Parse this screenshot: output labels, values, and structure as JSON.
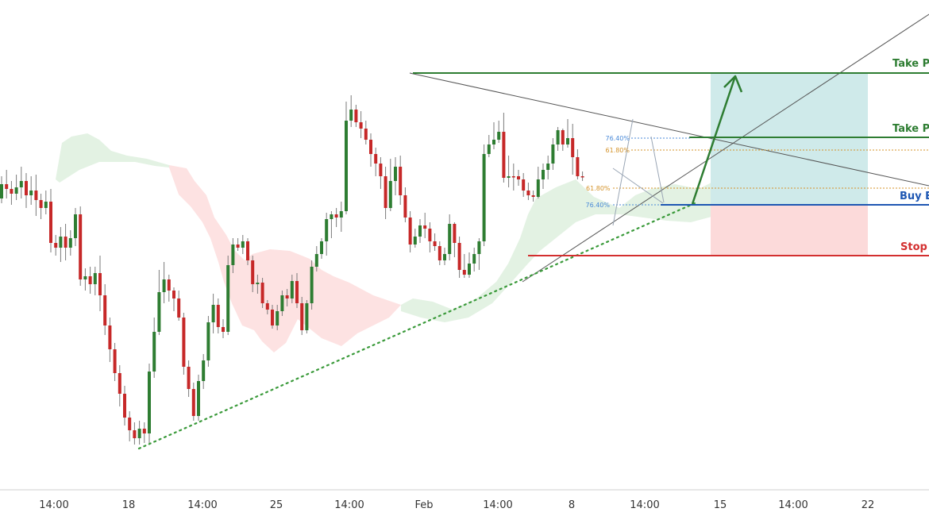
{
  "chart_data": {
    "type": "candlestick",
    "x_ticks": [
      "14:00",
      "18",
      "14:00",
      "25",
      "14:00",
      "Feb",
      "14:00",
      "8",
      "14:00",
      "15",
      "14:00",
      "22"
    ],
    "level_labels": {
      "take_profit_2": "Take P",
      "take_profit_1": "Take P",
      "buy_entry": "Buy E",
      "stop": "Stop"
    },
    "fib_labels": [
      "76.40%",
      "61.80%",
      "61.80%",
      "76.40%"
    ],
    "colors": {
      "bull": "#2e7d32",
      "bear": "#c62828",
      "take_profit": "#2e7d32",
      "buy_entry": "#1e57b3",
      "stop": "#d32f2f",
      "fib_blue": "#4a8ad8",
      "fib_orange": "#d4932a",
      "cloud_bull": "#e3f2e3",
      "cloud_bear": "#fde2e2",
      "profit_zone": "#cfeaea",
      "loss_zone": "#fcdada"
    },
    "candles": [
      [
        250,
        232,
        222,
        256
      ],
      [
        232,
        238,
        214,
        250
      ],
      [
        238,
        244,
        228,
        258
      ],
      [
        244,
        236,
        220,
        252
      ],
      [
        236,
        228,
        210,
        250
      ],
      [
        228,
        246,
        218,
        262
      ],
      [
        246,
        240,
        222,
        258
      ],
      [
        240,
        252,
        220,
        272
      ],
      [
        252,
        262,
        244,
        276
      ],
      [
        262,
        254,
        240,
        270
      ],
      [
        254,
        306,
        238,
        318
      ],
      [
        306,
        312,
        296,
        322
      ],
      [
        312,
        298,
        286,
        330
      ],
      [
        298,
        312,
        282,
        328
      ],
      [
        312,
        300,
        290,
        322
      ],
      [
        300,
        270,
        262,
        310
      ],
      [
        270,
        352,
        260,
        360
      ],
      [
        352,
        348,
        338,
        366
      ],
      [
        348,
        358,
        336,
        370
      ],
      [
        358,
        344,
        336,
        372
      ],
      [
        344,
        372,
        322,
        392
      ],
      [
        372,
        410,
        358,
        422
      ],
      [
        410,
        440,
        400,
        456
      ],
      [
        440,
        470,
        432,
        480
      ],
      [
        470,
        496,
        460,
        512
      ],
      [
        496,
        526,
        486,
        536
      ],
      [
        526,
        542,
        518,
        556
      ],
      [
        542,
        552,
        532,
        560
      ],
      [
        552,
        540,
        530,
        560
      ],
      [
        540,
        546,
        532,
        558
      ],
      [
        546,
        468,
        458,
        558
      ],
      [
        468,
        418,
        400,
        476
      ],
      [
        418,
        368,
        340,
        422
      ],
      [
        368,
        352,
        330,
        382
      ],
      [
        352,
        366,
        346,
        380
      ],
      [
        366,
        376,
        362,
        392
      ],
      [
        376,
        400,
        366,
        404
      ],
      [
        400,
        462,
        394,
        472
      ],
      [
        462,
        490,
        454,
        500
      ],
      [
        490,
        524,
        482,
        530
      ],
      [
        524,
        480,
        472,
        530
      ],
      [
        480,
        454,
        446,
        490
      ],
      [
        454,
        406,
        398,
        462
      ],
      [
        406,
        384,
        370,
        420
      ],
      [
        384,
        412,
        376,
        420
      ],
      [
        412,
        418,
        402,
        426
      ],
      [
        418,
        334,
        322,
        422
      ],
      [
        334,
        308,
        300,
        344
      ],
      [
        308,
        312,
        300,
        316
      ],
      [
        312,
        304,
        296,
        320
      ],
      [
        304,
        328,
        300,
        334
      ],
      [
        328,
        358,
        322,
        368
      ],
      [
        358,
        356,
        346,
        370
      ],
      [
        356,
        382,
        350,
        388
      ],
      [
        382,
        390,
        378,
        396
      ],
      [
        390,
        410,
        384,
        414
      ],
      [
        410,
        392,
        384,
        416
      ],
      [
        392,
        372,
        366,
        398
      ],
      [
        372,
        376,
        364,
        386
      ],
      [
        376,
        354,
        346,
        382
      ],
      [
        354,
        382,
        344,
        388
      ],
      [
        382,
        416,
        374,
        422
      ],
      [
        416,
        382,
        378,
        420
      ],
      [
        382,
        336,
        328,
        390
      ],
      [
        336,
        320,
        310,
        342
      ],
      [
        320,
        304,
        300,
        326
      ],
      [
        304,
        276,
        268,
        322
      ],
      [
        276,
        270,
        266,
        300
      ],
      [
        270,
        274,
        262,
        286
      ],
      [
        274,
        266,
        254,
        292
      ],
      [
        266,
        152,
        128,
        270
      ],
      [
        152,
        138,
        120,
        160
      ],
      [
        138,
        154,
        132,
        160
      ],
      [
        154,
        162,
        140,
        174
      ],
      [
        162,
        176,
        152,
        182
      ],
      [
        176,
        194,
        168,
        210
      ],
      [
        194,
        206,
        186,
        222
      ],
      [
        206,
        222,
        198,
        238
      ],
      [
        222,
        262,
        210,
        276
      ],
      [
        262,
        228,
        200,
        266
      ],
      [
        228,
        210,
        198,
        246
      ],
      [
        210,
        246,
        196,
        258
      ],
      [
        246,
        274,
        236,
        280
      ],
      [
        274,
        308,
        266,
        318
      ],
      [
        308,
        298,
        288,
        312
      ],
      [
        298,
        284,
        276,
        306
      ],
      [
        284,
        288,
        268,
        300
      ],
      [
        288,
        304,
        280,
        318
      ],
      [
        304,
        310,
        294,
        316
      ],
      [
        310,
        328,
        304,
        334
      ],
      [
        328,
        320,
        312,
        334
      ],
      [
        320,
        282,
        270,
        328
      ],
      [
        282,
        306,
        280,
        324
      ],
      [
        306,
        340,
        298,
        350
      ],
      [
        340,
        346,
        320,
        350
      ],
      [
        346,
        332,
        318,
        350
      ],
      [
        332,
        320,
        312,
        342
      ],
      [
        320,
        304,
        300,
        340
      ],
      [
        304,
        194,
        182,
        310
      ],
      [
        194,
        182,
        170,
        198
      ],
      [
        182,
        176,
        154,
        188
      ],
      [
        176,
        166,
        152,
        180
      ],
      [
        166,
        224,
        142,
        230
      ],
      [
        224,
        222,
        196,
        236
      ],
      [
        222,
        222,
        206,
        240
      ],
      [
        222,
        226,
        214,
        234
      ],
      [
        226,
        240,
        218,
        248
      ],
      [
        240,
        246,
        230,
        252
      ],
      [
        246,
        248,
        240,
        254
      ],
      [
        248,
        226,
        210,
        250
      ],
      [
        226,
        214,
        206,
        238
      ],
      [
        214,
        206,
        196,
        226
      ],
      [
        206,
        182,
        174,
        214
      ],
      [
        182,
        164,
        160,
        190
      ],
      [
        164,
        182,
        162,
        190
      ],
      [
        182,
        174,
        150,
        186
      ],
      [
        174,
        198,
        156,
        220
      ],
      [
        198,
        222,
        188,
        226
      ],
      [
        222,
        222,
        216,
        228
      ]
    ],
    "cloud_bull": [
      [
        [
          70,
          226
        ],
        [
          78,
          180
        ],
        [
          90,
          172
        ],
        [
          110,
          168
        ],
        [
          125,
          176
        ],
        [
          140,
          190
        ],
        [
          160,
          196
        ],
        [
          185,
          200
        ],
        [
          213,
          208
        ],
        [
          213,
          211
        ],
        [
          195,
          209
        ],
        [
          170,
          204
        ],
        [
          150,
          204
        ],
        [
          125,
          204
        ],
        [
          100,
          214
        ],
        [
          75,
          230
        ]
      ],
      [
        [
          505,
          384
        ],
        [
          520,
          376
        ],
        [
          545,
          380
        ],
        [
          570,
          390
        ],
        [
          600,
          376
        ],
        [
          625,
          355
        ],
        [
          640,
          332
        ],
        [
          655,
          300
        ],
        [
          665,
          270
        ],
        [
          675,
          250
        ],
        [
          700,
          236
        ],
        [
          725,
          226
        ],
        [
          748,
          248
        ],
        [
          780,
          262
        ],
        [
          800,
          246
        ],
        [
          820,
          238
        ],
        [
          850,
          232
        ],
        [
          880,
          238
        ],
        [
          900,
          228
        ],
        [
          915,
          224
        ],
        [
          925,
          230
        ],
        [
          915,
          256
        ],
        [
          900,
          272
        ],
        [
          870,
          280
        ],
        [
          840,
          278
        ],
        [
          810,
          274
        ],
        [
          780,
          270
        ],
        [
          750,
          270
        ],
        [
          725,
          280
        ],
        [
          700,
          300
        ],
        [
          680,
          316
        ],
        [
          665,
          332
        ],
        [
          640,
          360
        ],
        [
          620,
          382
        ],
        [
          590,
          400
        ],
        [
          560,
          406
        ],
        [
          530,
          400
        ],
        [
          505,
          392
        ]
      ]
    ],
    "cloud_bear": [
      [
        [
          213,
          208
        ],
        [
          235,
          212
        ],
        [
          245,
          228
        ],
        [
          260,
          246
        ],
        [
          270,
          274
        ],
        [
          285,
          296
        ],
        [
          295,
          315
        ],
        [
          308,
          328
        ],
        [
          318,
          320
        ],
        [
          340,
          314
        ],
        [
          365,
          316
        ],
        [
          390,
          326
        ],
        [
          405,
          340
        ],
        [
          420,
          348
        ],
        [
          440,
          356
        ],
        [
          470,
          372
        ],
        [
          505,
          384
        ],
        [
          490,
          400
        ],
        [
          470,
          410
        ],
        [
          450,
          420
        ],
        [
          430,
          436
        ],
        [
          405,
          426
        ],
        [
          390,
          414
        ],
        [
          375,
          402
        ],
        [
          360,
          432
        ],
        [
          345,
          444
        ],
        [
          330,
          430
        ],
        [
          320,
          416
        ],
        [
          305,
          410
        ],
        [
          292,
          382
        ],
        [
          282,
          355
        ],
        [
          275,
          330
        ],
        [
          265,
          300
        ],
        [
          255,
          280
        ],
        [
          240,
          260
        ],
        [
          225,
          245
        ],
        [
          213,
          211
        ]
      ],
      [
        [
          930,
          230
        ],
        [
          980,
          232
        ],
        [
          980,
          238
        ],
        [
          935,
          240
        ]
      ]
    ]
  }
}
